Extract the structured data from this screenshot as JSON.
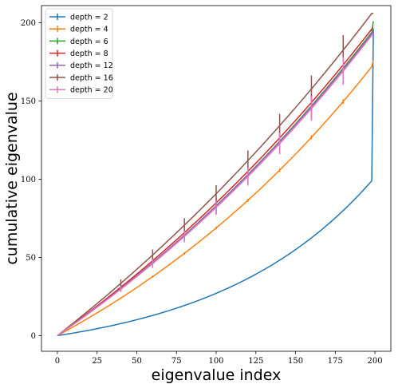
{
  "chart_data": {
    "type": "line",
    "xlabel": "eigenvalue index",
    "ylabel": "cumulative eigenvalue",
    "xlim": [
      -10,
      210
    ],
    "ylim": [
      -10,
      211
    ],
    "xticks": [
      0,
      25,
      50,
      75,
      100,
      125,
      150,
      175,
      200
    ],
    "yticks": [
      0,
      50,
      100,
      150,
      200
    ],
    "grid": false,
    "legend_position": "top-left",
    "error_bar_x": [
      40,
      60,
      80,
      100,
      120,
      140,
      160,
      180
    ],
    "series": [
      {
        "name": "depth = 2",
        "color": "#1f77b4",
        "curvature": 2.0,
        "end_y": 99,
        "final_y": 196,
        "errors": [
          0.3,
          0.3,
          0.3,
          0.3,
          0.3,
          0.3,
          0.3,
          0.3
        ]
      },
      {
        "name": "depth = 4",
        "color": "#ff7f0e",
        "curvature": 0.85,
        "end_y": 172,
        "final_y": 176,
        "errors": [
          0.5,
          0.7,
          0.8,
          0.9,
          1.0,
          1.1,
          1.3,
          1.5
        ]
      },
      {
        "name": "depth = 6",
        "color": "#2ca02c",
        "curvature": 0.62,
        "end_y": 194,
        "final_y": 201,
        "errors": [
          0.8,
          1.0,
          1.2,
          1.5,
          1.8,
          2.0,
          2.3,
          2.5
        ]
      },
      {
        "name": "depth = 8",
        "color": "#d62728",
        "curvature": 0.58,
        "end_y": 196,
        "final_y": 197,
        "errors": [
          1.0,
          1.5,
          2.0,
          2.5,
          3.0,
          3.5,
          4.0,
          4.5
        ]
      },
      {
        "name": "depth = 12",
        "color": "#9467bd",
        "curvature": 0.61,
        "end_y": 193,
        "final_y": 195,
        "errors": [
          2.0,
          3.0,
          4.0,
          5.0,
          6.0,
          7.0,
          8.0,
          9.0
        ]
      },
      {
        "name": "depth = 16",
        "color": "#8c564b",
        "curvature": 0.52,
        "end_y": 206,
        "final_y": 206,
        "errors": [
          2.5,
          3.5,
          4.5,
          5.5,
          6.5,
          7.5,
          8.5,
          9.5
        ]
      },
      {
        "name": "depth = 20",
        "color": "#e377c2",
        "curvature": 0.63,
        "end_y": 192,
        "final_y": 193,
        "errors": [
          1.8,
          2.8,
          3.8,
          4.8,
          5.8,
          6.8,
          7.8,
          8.8
        ]
      }
    ]
  }
}
